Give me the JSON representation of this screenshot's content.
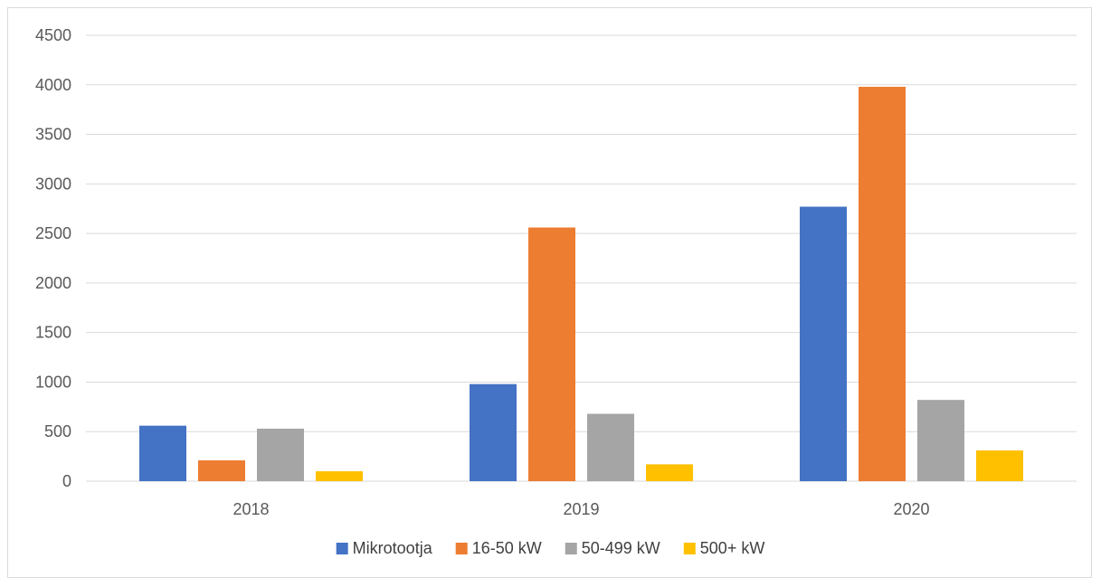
{
  "chart_data": {
    "type": "bar",
    "title": "",
    "xlabel": "",
    "ylabel": "",
    "categories": [
      "2018",
      "2019",
      "2020"
    ],
    "series": [
      {
        "name": "Mikrotootja",
        "color": "#4472C4",
        "values": [
          560,
          980,
          2770
        ]
      },
      {
        "name": "16-50 kW",
        "color": "#ED7D31",
        "values": [
          210,
          2560,
          3980
        ]
      },
      {
        "name": "50-499 kW",
        "color": "#A5A5A5",
        "values": [
          530,
          680,
          820
        ]
      },
      {
        "name": "500+ kW",
        "color": "#FFC000",
        "values": [
          100,
          170,
          310
        ]
      }
    ],
    "ylim": [
      0,
      4500
    ],
    "yticks": [
      0,
      500,
      1000,
      1500,
      2000,
      2500,
      3000,
      3500,
      4000,
      4500
    ],
    "grid": true,
    "legend_position": "bottom"
  }
}
